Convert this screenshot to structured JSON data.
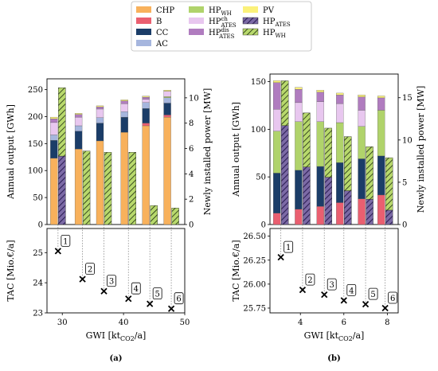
{
  "legend": {
    "entries": [
      {
        "key": "chp",
        "label": "CHP",
        "color": "#f8b15c",
        "hatch": false
      },
      {
        "key": "b",
        "label": "B",
        "color": "#ea5f70",
        "hatch": false
      },
      {
        "key": "cc",
        "label": "CC",
        "color": "#1b3d68",
        "hatch": false
      },
      {
        "key": "ac",
        "label": "AC",
        "color": "#a6b6de",
        "hatch": false
      },
      {
        "key": "hpwh",
        "label": "HP",
        "sup": "",
        "sub": "WH",
        "color": "#b0d36b",
        "hatch": false
      },
      {
        "key": "hpch",
        "label": "HP",
        "sup": "ch",
        "sub": "ATES",
        "color": "#e8c7ef",
        "hatch": false
      },
      {
        "key": "hpdis",
        "label": "HP",
        "sup": "dis",
        "sub": "ATES",
        "color": "#b07cbf",
        "hatch": false
      },
      {
        "key": "pv",
        "label": "PV",
        "color": "#fbf17a",
        "hatch": false
      },
      {
        "key": "hpates_new",
        "label": "HP",
        "sub": "ATES",
        "color": "#4a3372",
        "hatch": true
      },
      {
        "key": "hpwh_new",
        "label": "HP",
        "sub": "WH",
        "color": "#b6d86a",
        "hatch": true
      }
    ]
  },
  "chart_data": [
    {
      "panel": "(a)",
      "type": "bar",
      "title": "",
      "ylabel_left": "Annual output [GWh]",
      "ylabel_right": "Newly installed power [MW]",
      "ylim_left": [
        0,
        270
      ],
      "ylim_right": [
        0,
        11.5
      ],
      "left_ticks": [
        "0",
        "50",
        "100",
        "150",
        "200",
        "250"
      ],
      "right_ticks": [
        "0",
        "2",
        "4",
        "6",
        "8",
        "10"
      ],
      "solutions": [
        1,
        2,
        3,
        4,
        5,
        6
      ],
      "gwi": [
        29.3,
        33.3,
        36.8,
        40.8,
        44.3,
        47.8
      ],
      "stack_series": [
        {
          "key": "chp",
          "values": [
            123,
            140,
            155,
            171,
            183,
            199
          ]
        },
        {
          "key": "b",
          "values": [
            0,
            0,
            0,
            0,
            5,
            4
          ]
        },
        {
          "key": "cc",
          "values": [
            33,
            33,
            33,
            28,
            27,
            22
          ]
        },
        {
          "key": "ac",
          "values": [
            10,
            10,
            10,
            10,
            11,
            10
          ]
        },
        {
          "key": "hpwh",
          "values": [
            0,
            0,
            0,
            0,
            0,
            2
          ]
        },
        {
          "key": "hpch",
          "values": [
            23,
            16,
            16,
            15,
            6,
            10
          ]
        },
        {
          "key": "hpdis",
          "values": [
            7,
            5,
            4,
            5,
            4,
            0
          ]
        },
        {
          "key": "pv",
          "values": [
            3,
            2,
            2,
            2,
            2,
            2
          ]
        }
      ],
      "new_power": {
        "hpates": [
          5.4,
          0,
          0,
          0,
          0,
          0
        ],
        "hpwh": [
          5.4,
          5.8,
          5.7,
          5.7,
          1.5,
          1.3
        ]
      },
      "tac": {
        "ylabel": "TAC [Mio.€/a]",
        "ylim": [
          23,
          25.8
        ],
        "ticks": [
          "23",
          "24",
          "25"
        ],
        "values": [
          25.05,
          24.12,
          23.72,
          23.47,
          23.3,
          23.14
        ]
      },
      "xlabel": "GWI [kt",
      "xlabel_sub": "CO2",
      "xlabel_tail": "/a]",
      "xlim": [
        27.5,
        50
      ],
      "xticks": [
        "30",
        "40",
        "50"
      ],
      "caption": "(a)"
    },
    {
      "panel": "(b)",
      "type": "bar",
      "title": "",
      "ylabel_left": "Annual output [GWh]",
      "ylabel_right": "Newly installed power [MW]",
      "ylim_left": [
        0,
        158
      ],
      "ylim_right": [
        0,
        17.8
      ],
      "left_ticks": [
        "0",
        "50",
        "100",
        "150"
      ],
      "right_ticks": [
        "0",
        "5",
        "10",
        "15"
      ],
      "solutions": [
        1,
        2,
        3,
        4,
        5,
        6
      ],
      "gwi": [
        3.1,
        4.1,
        5.1,
        6.0,
        7.0,
        7.9
      ],
      "stack_series": [
        {
          "key": "chp",
          "values": [
            0,
            0,
            0,
            0,
            0,
            0
          ]
        },
        {
          "key": "b",
          "values": [
            12,
            16,
            19,
            23,
            27,
            31
          ]
        },
        {
          "key": "cc",
          "values": [
            42,
            41,
            42,
            42,
            42,
            41
          ]
        },
        {
          "key": "ac",
          "values": [
            0,
            0,
            0,
            0,
            0,
            0
          ]
        },
        {
          "key": "hpwh",
          "values": [
            44,
            51,
            47,
            42,
            34,
            48
          ]
        },
        {
          "key": "hpch",
          "values": [
            23,
            20,
            21,
            20,
            17,
            0
          ]
        },
        {
          "key": "hpdis",
          "values": [
            28,
            14,
            10,
            9,
            14,
            13
          ]
        },
        {
          "key": "pv",
          "values": [
            2,
            2,
            2,
            2,
            2,
            2
          ]
        }
      ],
      "new_power": {
        "hpates": [
          11.7,
          6.8,
          5.6,
          4.0,
          3.0,
          1.7
        ],
        "hpwh": [
          5.3,
          6.4,
          5.8,
          6.4,
          6.2,
          6.2
        ]
      },
      "tac": {
        "ylabel": "TAC [Mio.€/a]",
        "ylim": [
          25.7,
          26.58
        ],
        "ticks": [
          "25.75",
          "26.00",
          "26.25",
          "26.50"
        ],
        "values": [
          26.28,
          25.94,
          25.89,
          25.83,
          25.79,
          25.75
        ]
      },
      "xlabel": "GWI [kt",
      "xlabel_sub": "CO2",
      "xlabel_tail": "/a]",
      "xlim": [
        2.6,
        8.5
      ],
      "xticks": [
        "4",
        "6",
        "8"
      ],
      "caption": "(b)"
    }
  ]
}
